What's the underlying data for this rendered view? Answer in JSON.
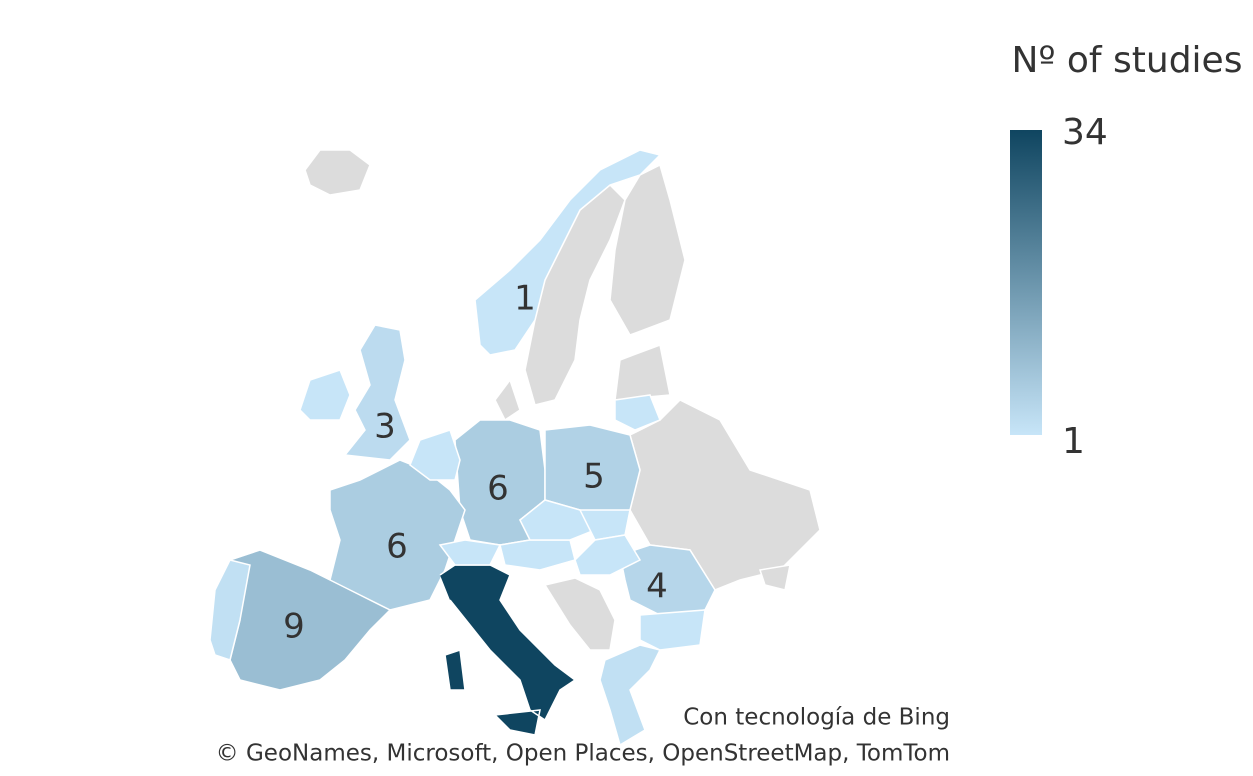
{
  "chart_data": {
    "type": "choropleth",
    "legend_title": "Nº of studies",
    "scale": {
      "min": 1,
      "max": 34,
      "colors": [
        "#c7e5f8",
        "#0f4560"
      ],
      "ticks": [
        34,
        1
      ]
    },
    "regions": [
      {
        "value": 1,
        "labeled": true
      },
      {
        "value": 3,
        "labeled": true
      },
      {
        "value": 6,
        "labeled": true
      },
      {
        "value": 5,
        "labeled": true
      },
      {
        "value": 6,
        "labeled": true
      },
      {
        "value": 9,
        "labeled": true
      },
      {
        "value": 4,
        "labeled": true
      },
      {
        "value": 34,
        "labeled": false
      },
      {
        "value": 1,
        "labeled": false
      },
      {
        "value": 2,
        "labeled": false
      },
      {
        "value": 1,
        "labeled": false
      },
      {
        "value": 1,
        "labeled": false
      },
      {
        "value": 1,
        "labeled": false
      },
      {
        "value": 1,
        "labeled": false
      },
      {
        "value": 1,
        "labeled": false
      },
      {
        "value": 1,
        "labeled": false
      },
      {
        "value": 1,
        "labeled": false
      },
      {
        "value": 2,
        "labeled": false
      },
      {
        "value": 1,
        "labeled": false
      }
    ],
    "attribution": [
      "Con tecnología de Bing",
      "© GeoNames, Microsoft, Open Places, OpenStreetMap, TomTom"
    ]
  }
}
